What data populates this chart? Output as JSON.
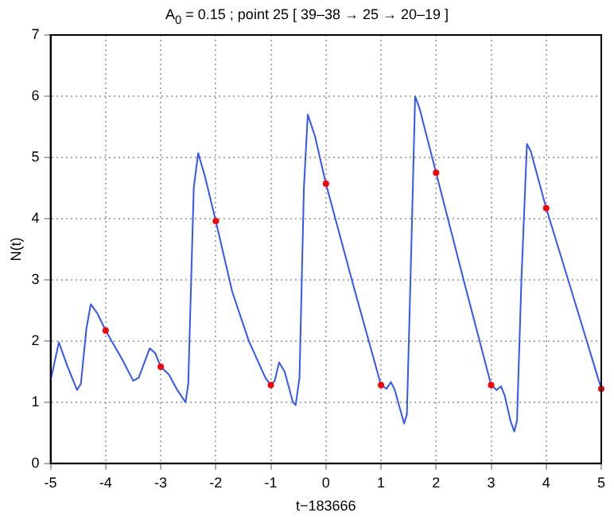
{
  "chart_data": {
    "type": "line",
    "title": "A$_{0}$ = 0.15 ; point 25 [ 39–38 → 25 → 20–19 ]",
    "xlabel": "t−183666",
    "ylabel": "N(t)",
    "xlim": [
      -5,
      5
    ],
    "xticks": [
      -5,
      -4,
      -3,
      -2,
      -1,
      0,
      1,
      2,
      3,
      4,
      5
    ],
    "ylim": [
      0,
      7
    ],
    "yticks": [
      0,
      1,
      2,
      3,
      4,
      5,
      6,
      7
    ],
    "grid": true,
    "series": [
      {
        "type": "line",
        "color": "#3355ff",
        "marker": "none",
        "x": [
          -5,
          -4.85,
          -4.7,
          -4.52,
          -4.45,
          -4.35,
          -4.27,
          -4.15,
          -4,
          -3.7,
          -3.5,
          -3.4,
          -3.2,
          -3.1,
          -3,
          -2.85,
          -2.7,
          -2.55,
          -2.5,
          -2.4,
          -2.32,
          -2.2,
          -2,
          -1.7,
          -1.4,
          -1.1,
          -1,
          -0.93,
          -0.85,
          -0.75,
          -0.6,
          -0.55,
          -0.48,
          -0.4,
          -0.33,
          -0.2,
          0,
          0.5,
          1,
          1.1,
          1.18,
          1.25,
          1.42,
          1.47,
          1.55,
          1.62,
          1.7,
          2,
          2.5,
          3,
          3.1,
          3.18,
          3.25,
          3.35,
          3.42,
          3.47,
          3.55,
          3.65,
          3.72,
          4,
          4.5,
          5
        ],
        "values": [
          1.35,
          1.98,
          1.6,
          1.2,
          1.3,
          2.2,
          2.6,
          2.45,
          2.17,
          1.7,
          1.35,
          1.4,
          1.88,
          1.8,
          1.58,
          1.45,
          1.2,
          1.0,
          1.3,
          4.5,
          5.07,
          4.7,
          3.96,
          2.8,
          2.0,
          1.4,
          1.28,
          1.35,
          1.65,
          1.5,
          1.0,
          0.95,
          1.4,
          4.5,
          5.7,
          5.35,
          4.57,
          2.9,
          1.28,
          1.22,
          1.33,
          1.2,
          0.65,
          0.8,
          3.5,
          6.0,
          5.8,
          4.75,
          3.0,
          1.28,
          1.2,
          1.26,
          1.1,
          0.7,
          0.52,
          0.7,
          3.0,
          5.22,
          5.1,
          4.17,
          2.7,
          1.22
        ]
      },
      {
        "type": "scatter",
        "color": "#ff0000",
        "marker": "circle",
        "x": [
          -4,
          -3,
          -2,
          -1,
          0,
          1,
          2,
          3,
          4,
          5
        ],
        "values": [
          2.17,
          1.58,
          3.96,
          1.28,
          4.57,
          1.28,
          4.75,
          1.28,
          4.17,
          1.22
        ]
      }
    ]
  }
}
